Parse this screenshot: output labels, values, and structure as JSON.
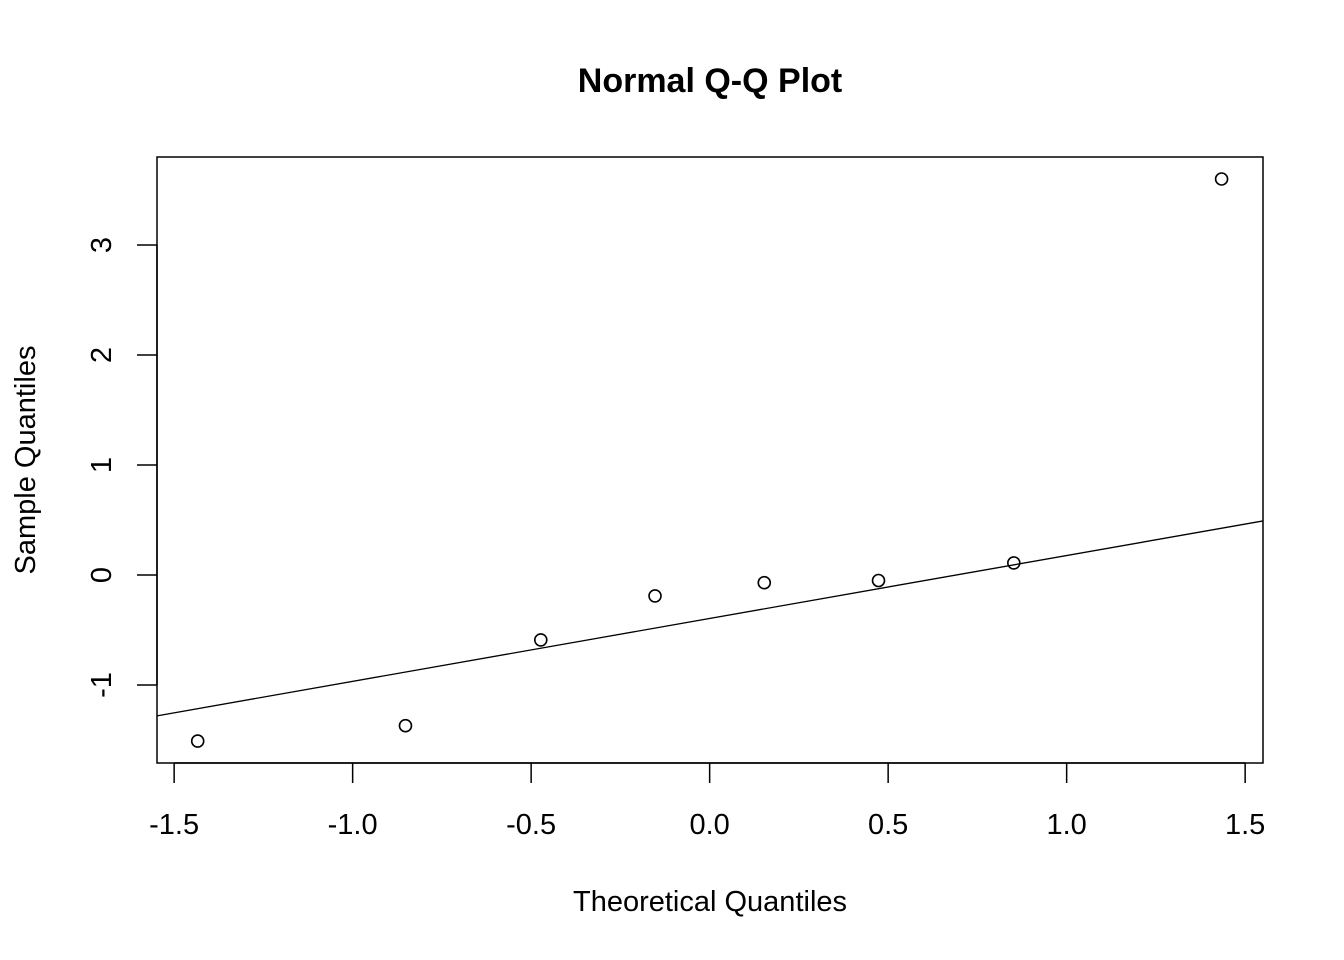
{
  "chart_data": {
    "type": "scatter",
    "title": "Normal Q-Q Plot",
    "xlabel": "Theoretical Quantiles",
    "ylabel": "Sample Quantiles",
    "xlim": [
      -1.548,
      1.55
    ],
    "ylim": [
      -1.709,
      3.8
    ],
    "x_ticks": [
      -1.5,
      -1.0,
      -0.5,
      0.0,
      0.5,
      1.0,
      1.5
    ],
    "x_tick_labels": [
      "-1.5",
      "-1.0",
      "-0.5",
      "0.0",
      "0.5",
      "1.0",
      "1.5"
    ],
    "y_ticks": [
      -1,
      0,
      1,
      2,
      3
    ],
    "y_tick_labels": [
      "-1",
      "0",
      "1",
      "2",
      "3"
    ],
    "grid": false,
    "points": [
      {
        "x": -1.434,
        "y": -1.51
      },
      {
        "x": -0.852,
        "y": -1.37
      },
      {
        "x": -0.473,
        "y": -0.59
      },
      {
        "x": -0.153,
        "y": -0.19
      },
      {
        "x": 0.153,
        "y": -0.07
      },
      {
        "x": 0.473,
        "y": -0.05
      },
      {
        "x": 0.852,
        "y": 0.11
      },
      {
        "x": 1.434,
        "y": 3.6
      }
    ],
    "reference_line": {
      "intercept": -0.395,
      "slope": 0.572
    },
    "colors": {
      "points": "#000000",
      "line": "#000000"
    }
  }
}
